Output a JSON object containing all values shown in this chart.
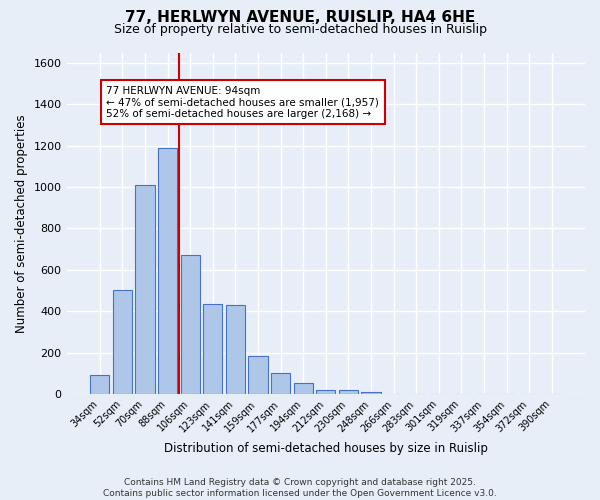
{
  "title1": "77, HERLWYN AVENUE, RUISLIP, HA4 6HE",
  "title2": "Size of property relative to semi-detached houses in Ruislip",
  "xlabel": "Distribution of semi-detached houses by size in Ruislip",
  "ylabel": "Number of semi-detached properties",
  "bar_labels": [
    "34sqm",
    "52sqm",
    "70sqm",
    "88sqm",
    "106sqm",
    "123sqm",
    "141sqm",
    "159sqm",
    "177sqm",
    "194sqm",
    "212sqm",
    "230sqm",
    "248sqm",
    "266sqm",
    "283sqm",
    "301sqm",
    "319sqm",
    "337sqm",
    "354sqm",
    "372sqm",
    "390sqm"
  ],
  "bar_values": [
    90,
    500,
    1010,
    1190,
    670,
    435,
    430,
    185,
    100,
    55,
    20,
    20,
    10,
    0,
    0,
    0,
    0,
    0,
    0,
    0,
    0
  ],
  "bar_color": "#aec6e8",
  "bar_edge_color": "#4472c4",
  "annotation_line1": "77 HERLWYN AVENUE: 94sqm",
  "annotation_line2": "← 47% of semi-detached houses are smaller (1,957)",
  "annotation_line3": "52% of semi-detached houses are larger (2,168) →",
  "annotation_box_color": "#ffffff",
  "annotation_box_edge": "#cc0000",
  "vline_color": "#cc0000",
  "vline_x_index": 3.5,
  "ylim": [
    0,
    1650
  ],
  "yticks": [
    0,
    200,
    400,
    600,
    800,
    1000,
    1200,
    1400,
    1600
  ],
  "bg_color": "#e8eef8",
  "grid_color": "#ffffff",
  "footer": "Contains HM Land Registry data © Crown copyright and database right 2025.\nContains public sector information licensed under the Open Government Licence v3.0."
}
